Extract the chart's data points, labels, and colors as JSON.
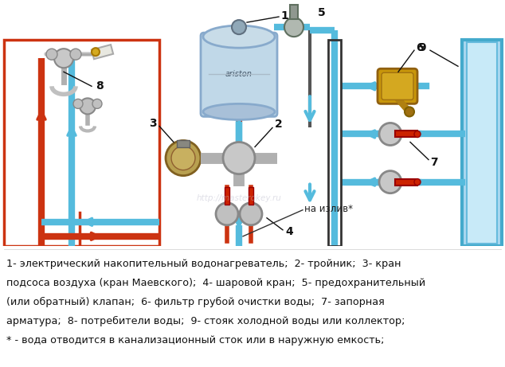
{
  "bg_color": "#ffffff",
  "text_lines": [
    "1- электрический накопительный водонагреватель;  2- тройник;  3- кран",
    "подсоса воздуха (кран Маевского);  4- шаровой кран;  5- предохранительный",
    "(или обратный) клапан;  6- фильтр грубой очистки воды;  7- запорная",
    "арматура;  8- потребители воды;  9- стояк холодной воды или коллектор;",
    "* - вода отводится в канализационный сток или в наружную емкость;"
  ],
  "text_color": "#111111",
  "text_fontsize": 9.2,
  "blue": "#4ab0d4",
  "blue_dark": "#2288bb",
  "red": "#cc2200",
  "red_arrow": "#dd3311",
  "pipe_blue": "#55bbdd",
  "pipe_red": "#cc3311",
  "grey": "#b0b0b0",
  "brass": "#c8960a",
  "white_bg": "#ffffff",
  "label_fs": 10,
  "watermark": "http://masterokey.ru",
  "wm_color": "#bbbbcc",
  "wm_alpha": 0.45
}
